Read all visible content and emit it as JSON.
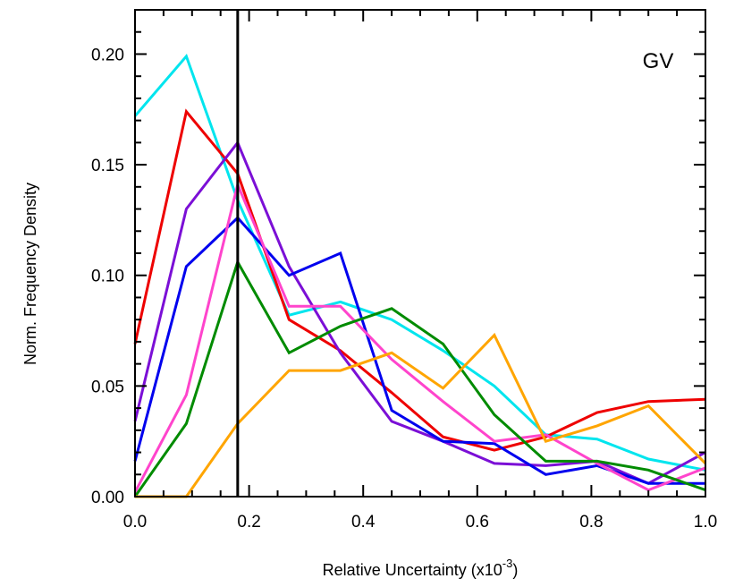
{
  "chart_data": {
    "type": "line",
    "panel_label": "GV",
    "xlabel": "Relative Uncertainty (x10",
    "xlabel_exponent": "-3",
    "xlabel_suffix": ")",
    "ylabel": "Norm. Frequency Density",
    "xlim": [
      0.0,
      1.0
    ],
    "ylim": [
      0.0,
      0.22
    ],
    "xticks": [
      "0.0",
      "0.2",
      "0.4",
      "0.6",
      "0.8",
      "1.0"
    ],
    "yticks": [
      "0.00",
      "0.05",
      "0.10",
      "0.15",
      "0.20"
    ],
    "xtick_values": [
      0.0,
      0.2,
      0.4,
      0.6,
      0.8,
      1.0
    ],
    "ytick_values": [
      0.0,
      0.05,
      0.1,
      0.15,
      0.2
    ],
    "vertical_line_x": 0.18,
    "grid": false,
    "x": [
      0.0,
      0.09,
      0.18,
      0.27,
      0.36,
      0.45,
      0.54,
      0.63,
      0.72,
      0.81,
      0.9,
      1.0
    ],
    "series": [
      {
        "color": "#00e5ee",
        "values": [
          0.172,
          0.199,
          0.134,
          0.082,
          0.088,
          0.08,
          0.066,
          0.05,
          0.028,
          0.026,
          0.017,
          0.012
        ]
      },
      {
        "color": "#ee0000",
        "values": [
          0.069,
          0.174,
          0.146,
          0.08,
          0.066,
          0.047,
          0.027,
          0.021,
          0.027,
          0.038,
          0.043,
          0.044
        ]
      },
      {
        "color": "#7b0fd6",
        "values": [
          0.034,
          0.13,
          0.16,
          0.104,
          0.065,
          0.034,
          0.025,
          0.015,
          0.014,
          0.016,
          0.006,
          0.02
        ]
      },
      {
        "color": "#0000ee",
        "values": [
          0.016,
          0.104,
          0.126,
          0.1,
          0.11,
          0.039,
          0.025,
          0.024,
          0.01,
          0.014,
          0.006,
          0.006
        ]
      },
      {
        "color": "#ff44cc",
        "values": [
          0.002,
          0.046,
          0.141,
          0.086,
          0.086,
          0.062,
          0.043,
          0.025,
          0.028,
          0.015,
          0.003,
          0.013
        ]
      },
      {
        "color": "#008b00",
        "values": [
          0.0,
          0.033,
          0.106,
          0.065,
          0.077,
          0.085,
          0.069,
          0.037,
          0.016,
          0.016,
          0.012,
          0.003
        ]
      },
      {
        "color": "#ffa500",
        "values": [
          0.0,
          0.0,
          0.033,
          0.057,
          0.057,
          0.065,
          0.049,
          0.073,
          0.025,
          0.032,
          0.041,
          0.015
        ]
      }
    ]
  }
}
